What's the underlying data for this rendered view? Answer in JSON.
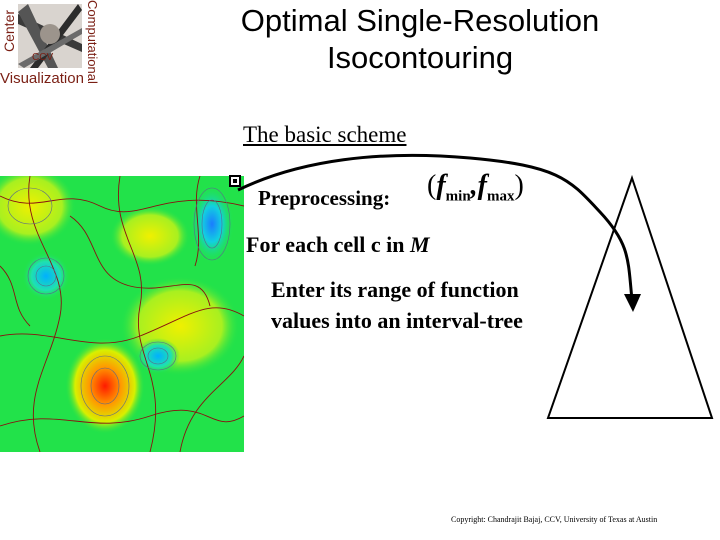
{
  "logo": {
    "center": "Center",
    "computational": "Computational",
    "ccv": "CCV",
    "visualization": "Visualization"
  },
  "title": {
    "line1": "Optimal Single-Resolution",
    "line2": "Isocontouring"
  },
  "content": {
    "heading": "The basic scheme",
    "preprocessing_label": "Preprocessing:",
    "formula": {
      "open": "(",
      "f1": "f",
      "sub1": "min",
      "comma": ",",
      "f2": "f",
      "sub2": "max",
      "close": ")"
    },
    "for_each_prefix": "For each cell c in ",
    "for_each_var": "M",
    "enter_line1": "Enter its range of function",
    "enter_line2": "values into an interval-tree"
  },
  "footer": {
    "copyright": "Copyright: Chandrajit Bajaj, CCV, University of Texas at Austin"
  },
  "colors": {
    "logo_text": "#7a1f14",
    "field_base": "#22e24a"
  },
  "icons": [
    "bullet-square-icon",
    "arrow-icon",
    "triangle-tree-icon",
    "logo-icon"
  ]
}
